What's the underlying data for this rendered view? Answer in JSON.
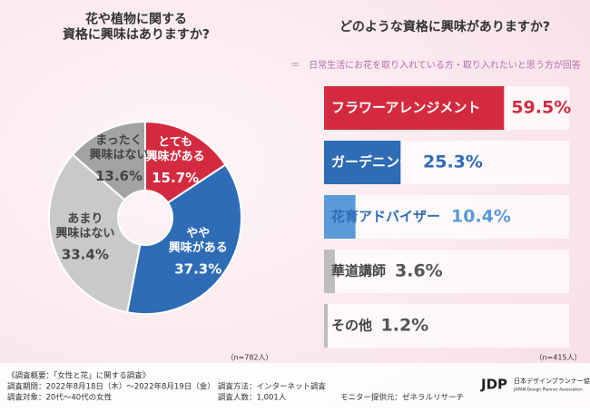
{
  "chart_data": [
    {
      "type": "donut",
      "title": "花や植物に関する\n資格に興味はありますか?",
      "categories": [
        "とても\n興味がある",
        "やや\n興味がある",
        "あまり\n興味はない",
        "まったく\n興味はない"
      ],
      "values": [
        15.7,
        37.3,
        33.4,
        13.6
      ],
      "value_labels": [
        "15.7%",
        "37.3%",
        "33.4%",
        "13.6%"
      ],
      "colors": [
        "#d42a3f",
        "#2e6cb6",
        "#c9c9c9",
        "#a3a3a3"
      ],
      "label_colors": [
        "#ffffff",
        "#ffffff",
        "#444444",
        "#444444"
      ],
      "note": "（n=782人）"
    },
    {
      "type": "hbar",
      "title": "どのような資格に興味がありますか?",
      "categories": [
        "フラワーアレンジメント",
        "ガーデニング",
        "花育アドバイザー",
        "華道講師",
        "その他"
      ],
      "values": [
        59.5,
        25.3,
        10.4,
        3.6,
        1.2
      ],
      "value_labels": [
        "59.5%",
        "25.3%",
        "10.4%",
        "3.6%",
        "1.2%"
      ],
      "colors": [
        "#d42a3f",
        "#2e6cb6",
        "#5a9ad8",
        "#bdbdbd",
        "#bdbdbd"
      ],
      "label_colors": [
        "#ffffff",
        "#ffffff",
        "#2e6cb6",
        "#444444",
        "#444444"
      ],
      "value_colors": [
        "#d42a3f",
        "#2e6cb6",
        "#5a9ad8",
        "#555555",
        "#555555"
      ],
      "xlim": [
        0,
        60
      ],
      "note": "（n=415人）"
    }
  ],
  "subtitle": "＝　日常生活にお花を取り入れている方・取り入れたいと思う方が回答　＝",
  "footer": {
    "heading": "《調査概要：「女性と花」に関する調査》",
    "items": [
      "調査期間：2022年8月18日（木）～2022年8月19日（金）",
      "調査方法：インターネット調査",
      "調査対象：20代～40代の女性",
      "調査人数：1,001人",
      "モニター提供元：ゼネラルリサーチ"
    ]
  },
  "logo": {
    "mark": "JDP",
    "name": "日本デザインプランナー協会",
    "english": "JAPAN Design Planner Association"
  }
}
